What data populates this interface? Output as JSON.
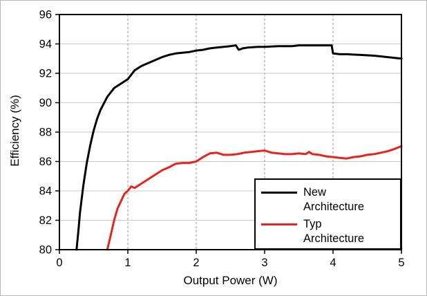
{
  "figure": {
    "background": "#ffffff",
    "border_color": "#b8b8b8"
  },
  "chart_data": {
    "type": "line",
    "title": "",
    "xlabel": "Output Power (W)",
    "ylabel": "Efficiency (%)",
    "xlim": [
      0,
      5
    ],
    "ylim": [
      80,
      96
    ],
    "xticks": [
      0,
      1,
      2,
      3,
      4,
      5
    ],
    "yticks": [
      80,
      82,
      84,
      86,
      88,
      90,
      92,
      94,
      96
    ],
    "grid": {
      "horizontal": "solid",
      "vertical": "dashed"
    },
    "grid_colors": {
      "horizontal": "#c9c9c9",
      "vertical": "#9a9a9a"
    },
    "axis_color": "#000000",
    "legend_position": "lower-right",
    "series": [
      {
        "name": "New Architecture",
        "legend_label": "New\nArchitecture",
        "color": "#000000",
        "points": [
          [
            0.25,
            80
          ],
          [
            0.28,
            81.4
          ],
          [
            0.3,
            82.5
          ],
          [
            0.35,
            84.4
          ],
          [
            0.4,
            85.9
          ],
          [
            0.45,
            87.1
          ],
          [
            0.5,
            88.1
          ],
          [
            0.55,
            88.9
          ],
          [
            0.6,
            89.5
          ],
          [
            0.7,
            90.4
          ],
          [
            0.8,
            91.0
          ],
          [
            0.9,
            91.3
          ],
          [
            1.0,
            91.6
          ],
          [
            1.1,
            92.2
          ],
          [
            1.2,
            92.5
          ],
          [
            1.3,
            92.7
          ],
          [
            1.4,
            92.9
          ],
          [
            1.5,
            93.1
          ],
          [
            1.6,
            93.25
          ],
          [
            1.7,
            93.35
          ],
          [
            1.8,
            93.4
          ],
          [
            1.9,
            93.45
          ],
          [
            2.0,
            93.55
          ],
          [
            2.1,
            93.6
          ],
          [
            2.2,
            93.7
          ],
          [
            2.3,
            93.75
          ],
          [
            2.4,
            93.8
          ],
          [
            2.5,
            93.85
          ],
          [
            2.58,
            93.9
          ],
          [
            2.62,
            93.6
          ],
          [
            2.68,
            93.7
          ],
          [
            2.75,
            93.75
          ],
          [
            2.9,
            93.8
          ],
          [
            3.0,
            93.8
          ],
          [
            3.2,
            93.85
          ],
          [
            3.4,
            93.85
          ],
          [
            3.5,
            93.9
          ],
          [
            3.7,
            93.9
          ],
          [
            3.85,
            93.9
          ],
          [
            3.98,
            93.9
          ],
          [
            4.0,
            93.35
          ],
          [
            4.1,
            93.3
          ],
          [
            4.2,
            93.3
          ],
          [
            4.4,
            93.25
          ],
          [
            4.6,
            93.2
          ],
          [
            4.8,
            93.1
          ],
          [
            5.0,
            93.0
          ]
        ]
      },
      {
        "name": "Typ Architecture",
        "legend_label": "Typ\nArchitecture",
        "color": "#e8231e",
        "points": [
          [
            0.7,
            80
          ],
          [
            0.75,
            81.0
          ],
          [
            0.8,
            82.0
          ],
          [
            0.85,
            82.8
          ],
          [
            0.9,
            83.3
          ],
          [
            0.95,
            83.8
          ],
          [
            1.0,
            84.0
          ],
          [
            1.05,
            84.3
          ],
          [
            1.1,
            84.2
          ],
          [
            1.2,
            84.5
          ],
          [
            1.3,
            84.8
          ],
          [
            1.4,
            85.1
          ],
          [
            1.5,
            85.4
          ],
          [
            1.6,
            85.6
          ],
          [
            1.7,
            85.85
          ],
          [
            1.8,
            85.9
          ],
          [
            1.9,
            85.9
          ],
          [
            2.0,
            86.0
          ],
          [
            2.1,
            86.3
          ],
          [
            2.2,
            86.55
          ],
          [
            2.3,
            86.6
          ],
          [
            2.4,
            86.45
          ],
          [
            2.5,
            86.45
          ],
          [
            2.6,
            86.5
          ],
          [
            2.7,
            86.6
          ],
          [
            2.8,
            86.65
          ],
          [
            2.9,
            86.7
          ],
          [
            3.0,
            86.75
          ],
          [
            3.1,
            86.6
          ],
          [
            3.2,
            86.55
          ],
          [
            3.3,
            86.5
          ],
          [
            3.4,
            86.5
          ],
          [
            3.5,
            86.55
          ],
          [
            3.6,
            86.5
          ],
          [
            3.65,
            86.65
          ],
          [
            3.7,
            86.5
          ],
          [
            3.8,
            86.45
          ],
          [
            3.9,
            86.35
          ],
          [
            4.0,
            86.3
          ],
          [
            4.1,
            86.25
          ],
          [
            4.2,
            86.2
          ],
          [
            4.3,
            86.3
          ],
          [
            4.4,
            86.35
          ],
          [
            4.5,
            86.45
          ],
          [
            4.6,
            86.5
          ],
          [
            4.7,
            86.6
          ],
          [
            4.8,
            86.7
          ],
          [
            4.9,
            86.85
          ],
          [
            5.0,
            87.05
          ]
        ]
      }
    ]
  }
}
